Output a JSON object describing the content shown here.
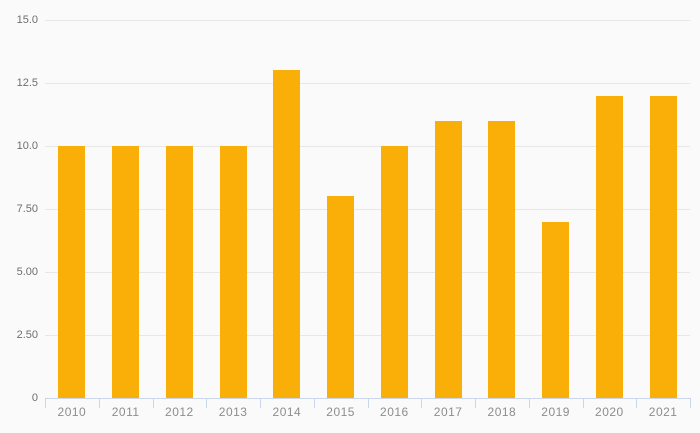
{
  "chart_data": {
    "type": "bar",
    "title": "",
    "xlabel": "",
    "ylabel": "",
    "categories": [
      "2010",
      "2011",
      "2012",
      "2013",
      "2014",
      "2015",
      "2016",
      "2017",
      "2018",
      "2019",
      "2020",
      "2021"
    ],
    "values": [
      10,
      10,
      10,
      10,
      13,
      8,
      10,
      11,
      11,
      7,
      12,
      12
    ],
    "ylim": [
      0,
      15
    ],
    "yticks": [
      {
        "value": 0,
        "label": "0"
      },
      {
        "value": 2.5,
        "label": "2.50"
      },
      {
        "value": 5,
        "label": "5.00"
      },
      {
        "value": 7.5,
        "label": "7.50"
      },
      {
        "value": 10,
        "label": "10.0"
      },
      {
        "value": 12.5,
        "label": "12.5"
      },
      {
        "value": 15,
        "label": "15.0"
      }
    ],
    "grid": true,
    "legend": false,
    "colors": {
      "bar": "#f9ae08",
      "background": "#fafafa",
      "gridline": "#e7e7e7",
      "axis": "#ccd6eb",
      "y_label": "#6e6e6e",
      "x_label": "#8d8d8d"
    }
  }
}
